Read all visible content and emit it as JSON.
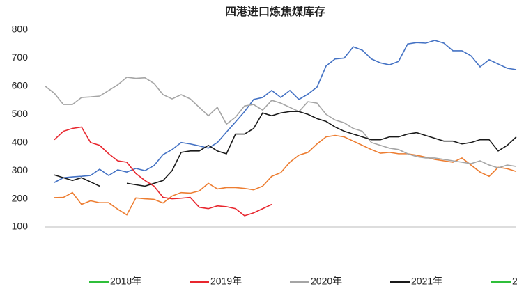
{
  "chart_data": {
    "type": "line",
    "title": "四港进口炼焦煤库存",
    "xlim": [
      1,
      53
    ],
    "ylim": [
      100,
      800
    ],
    "yticks": [
      100,
      200,
      300,
      400,
      500,
      600,
      700,
      800
    ],
    "x": [
      1,
      2,
      3,
      4,
      5,
      6,
      7,
      8,
      9,
      10,
      11,
      12,
      13,
      14,
      15,
      16,
      17,
      18,
      19,
      20,
      21,
      22,
      23,
      24,
      25,
      26,
      27,
      28,
      29,
      30,
      31,
      32,
      33,
      34,
      35,
      36,
      37,
      38,
      39,
      40,
      41,
      42,
      43,
      44,
      45,
      46,
      47,
      48,
      49,
      50,
      51,
      52,
      53
    ],
    "series": [
      {
        "color": "#4472c4",
        "values": [
          null,
          258,
          275,
          278,
          280,
          283,
          305,
          283,
          303,
          295,
          308,
          300,
          318,
          357,
          375,
          400,
          395,
          388,
          380,
          400,
          437,
          473,
          510,
          553,
          560,
          585,
          560,
          585,
          553,
          572,
          597,
          672,
          697,
          700,
          740,
          728,
          697,
          683,
          676,
          688,
          750,
          755,
          753,
          763,
          753,
          726,
          726,
          708,
          669,
          694,
          679,
          664,
          659
        ]
      },
      {
        "color": "#ed7d31",
        "values": [
          null,
          204,
          205,
          222,
          180,
          193,
          186,
          186,
          163,
          143,
          203,
          200,
          198,
          185,
          210,
          222,
          220,
          228,
          255,
          235,
          240,
          240,
          237,
          232,
          245,
          280,
          293,
          330,
          355,
          365,
          395,
          420,
          425,
          420,
          405,
          390,
          375,
          362,
          365,
          360,
          360,
          355,
          348,
          340,
          335,
          330,
          345,
          320,
          295,
          280,
          312,
          307,
          297
        ]
      },
      {
        "name": "2019年",
        "color": "#e8262e",
        "values": [
          null,
          410,
          440,
          450,
          455,
          400,
          390,
          360,
          335,
          330,
          290,
          265,
          245,
          205,
          200,
          202,
          205,
          170,
          165,
          175,
          172,
          165,
          140,
          150,
          165,
          180,
          null,
          null,
          null,
          null,
          null,
          null,
          null,
          null,
          null,
          null,
          null,
          null,
          null,
          null,
          null,
          null,
          null,
          null,
          null,
          null,
          null,
          null,
          null,
          null,
          null,
          null,
          null
        ]
      },
      {
        "name": "2020年",
        "color": "#a5a5a5",
        "values": [
          600,
          575,
          535,
          535,
          560,
          562,
          565,
          585,
          605,
          632,
          628,
          630,
          610,
          570,
          555,
          570,
          555,
          525,
          495,
          525,
          465,
          490,
          530,
          535,
          515,
          550,
          540,
          525,
          510,
          545,
          540,
          500,
          480,
          470,
          450,
          440,
          400,
          390,
          380,
          375,
          360,
          350,
          345,
          345,
          340,
          335,
          330,
          325,
          335,
          320,
          310,
          320,
          315
        ]
      },
      {
        "name": "2021年",
        "color": "#1a1a1a",
        "values": [
          null,
          285,
          275,
          265,
          275,
          260,
          245,
          null,
          null,
          255,
          250,
          245,
          255,
          265,
          300,
          365,
          370,
          370,
          390,
          370,
          360,
          430,
          430,
          450,
          505,
          495,
          505,
          510,
          510,
          500,
          485,
          475,
          455,
          440,
          430,
          420,
          410,
          410,
          420,
          420,
          430,
          435,
          425,
          415,
          405,
          405,
          395,
          400,
          410,
          410,
          370,
          390,
          420
        ]
      }
    ],
    "legend": [
      {
        "name": "2018年",
        "color": "#2fbf3a"
      },
      {
        "name": "2019年",
        "color": "#e8262e"
      },
      {
        "name": "2020年",
        "color": "#a5a5a5"
      },
      {
        "name": "2021年",
        "color": "#1a1a1a"
      },
      {
        "name": "2",
        "color": "#2fbf3a"
      }
    ]
  }
}
